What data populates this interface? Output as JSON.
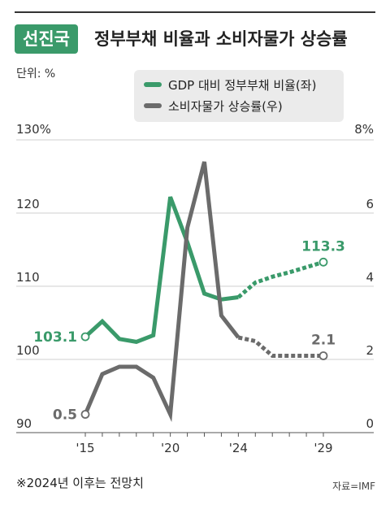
{
  "header": {
    "badge": "선진국",
    "title": "정부부채 비율과 소비자물가 상승률"
  },
  "unit_label": "단위: %",
  "footnote": "※2024년 이후는 전망치",
  "source": "자료=IMF",
  "colors": {
    "green": "#3a9a6a",
    "gray": "#6b6b6b",
    "badge": "#3a9a6a"
  },
  "chart_data": {
    "type": "line",
    "x_tick_labels": [
      "'15",
      "'20",
      "'24",
      "'29"
    ],
    "x_tick_years": [
      2015,
      2020,
      2024,
      2029
    ],
    "x_range": [
      2015,
      2029
    ],
    "y_left": {
      "range": [
        90,
        130
      ],
      "ticks": [
        90,
        100,
        110,
        120
      ],
      "top_label": "130%"
    },
    "y_right": {
      "range": [
        0,
        8
      ],
      "ticks": [
        0,
        2,
        4,
        6
      ],
      "top_label": "8%"
    },
    "forecast_from": 2024,
    "grid": true,
    "legend_position": "top-right",
    "series": [
      {
        "name": "GDP 대비 정부부채 비율(좌)",
        "axis": "left",
        "color": "#3a9a6a",
        "x": [
          2015,
          2016,
          2017,
          2018,
          2019,
          2020,
          2021,
          2022,
          2023,
          2024,
          2025,
          2026,
          2027,
          2028,
          2029
        ],
        "values": [
          103.1,
          105.2,
          102.8,
          102.4,
          103.3,
          122.2,
          116.0,
          109.0,
          108.2,
          108.5,
          110.5,
          111.3,
          111.9,
          112.6,
          113.3
        ],
        "start_label": "103.1",
        "end_label": "113.3"
      },
      {
        "name": "소비자물가 상승률(우)",
        "axis": "right",
        "color": "#6b6b6b",
        "x": [
          2015,
          2016,
          2017,
          2018,
          2019,
          2020,
          2021,
          2022,
          2023,
          2024,
          2025,
          2026,
          2027,
          2028,
          2029
        ],
        "values": [
          0.5,
          1.6,
          1.8,
          1.8,
          1.5,
          0.5,
          5.6,
          7.4,
          3.2,
          2.6,
          2.5,
          2.1,
          2.1,
          2.1,
          2.1
        ],
        "start_label": "0.5",
        "end_label": "2.1"
      }
    ]
  }
}
